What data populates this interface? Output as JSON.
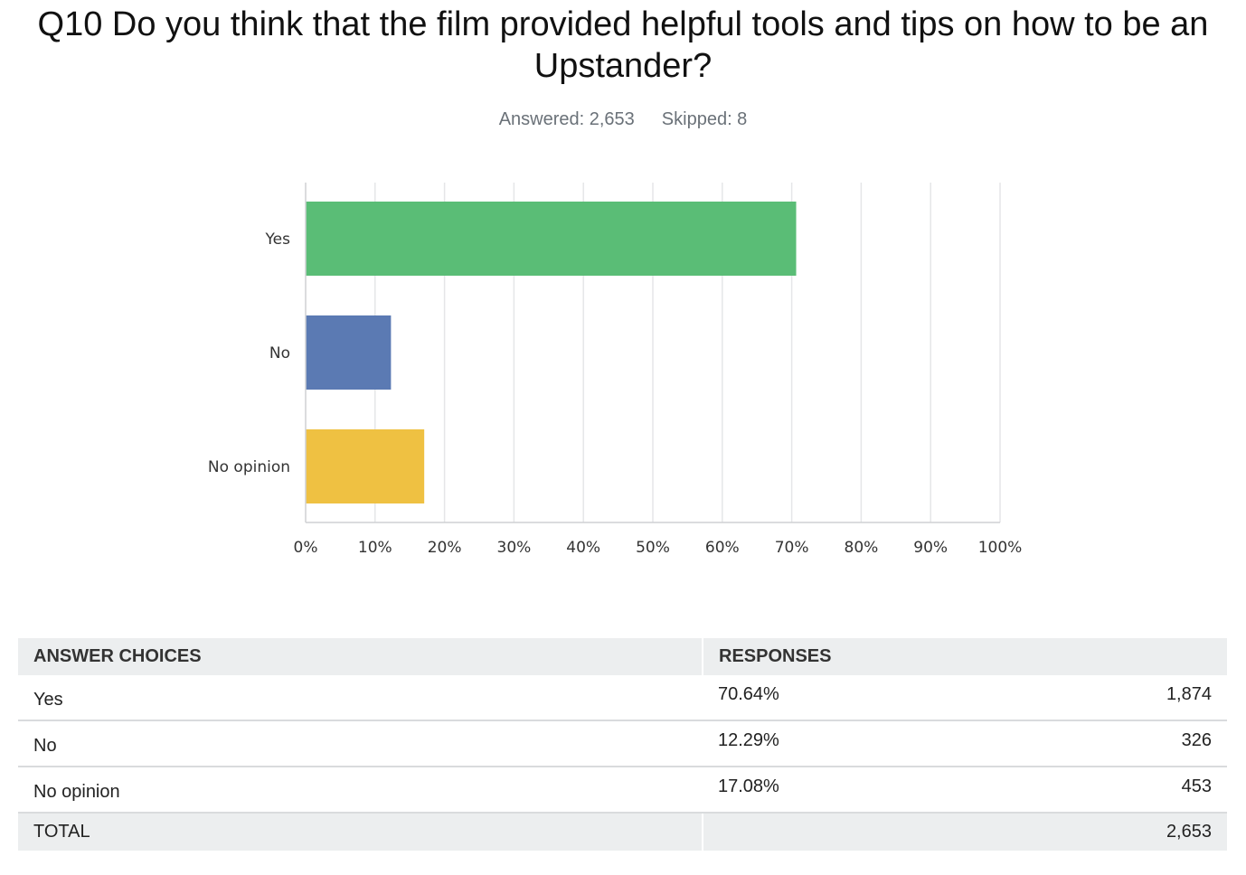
{
  "question": {
    "title": "Q10 Do you think that the film provided helpful tools and tips on how to be an Upstander?",
    "answered": "Answered: 2,653",
    "skipped": "Skipped: 8"
  },
  "chart_data": {
    "type": "bar",
    "orientation": "horizontal",
    "categories": [
      "Yes",
      "No",
      "No opinion"
    ],
    "values": [
      70.64,
      12.29,
      17.08
    ],
    "colors": [
      "#5abd76",
      "#5b7ab3",
      "#efc142"
    ],
    "xlim": [
      0,
      100
    ],
    "xticks": [
      "0%",
      "10%",
      "20%",
      "30%",
      "40%",
      "50%",
      "60%",
      "70%",
      "80%",
      "90%",
      "100%"
    ],
    "grid": true,
    "title": "",
    "xlabel": "",
    "ylabel": ""
  },
  "table": {
    "headers": [
      "ANSWER CHOICES",
      "RESPONSES"
    ],
    "rows": [
      {
        "choice": "Yes",
        "percent": "70.64%",
        "count": "1,874"
      },
      {
        "choice": "No",
        "percent": "12.29%",
        "count": "326"
      },
      {
        "choice": "No opinion",
        "percent": "17.08%",
        "count": "453"
      }
    ],
    "total": {
      "label": "TOTAL",
      "count": "2,653"
    }
  }
}
